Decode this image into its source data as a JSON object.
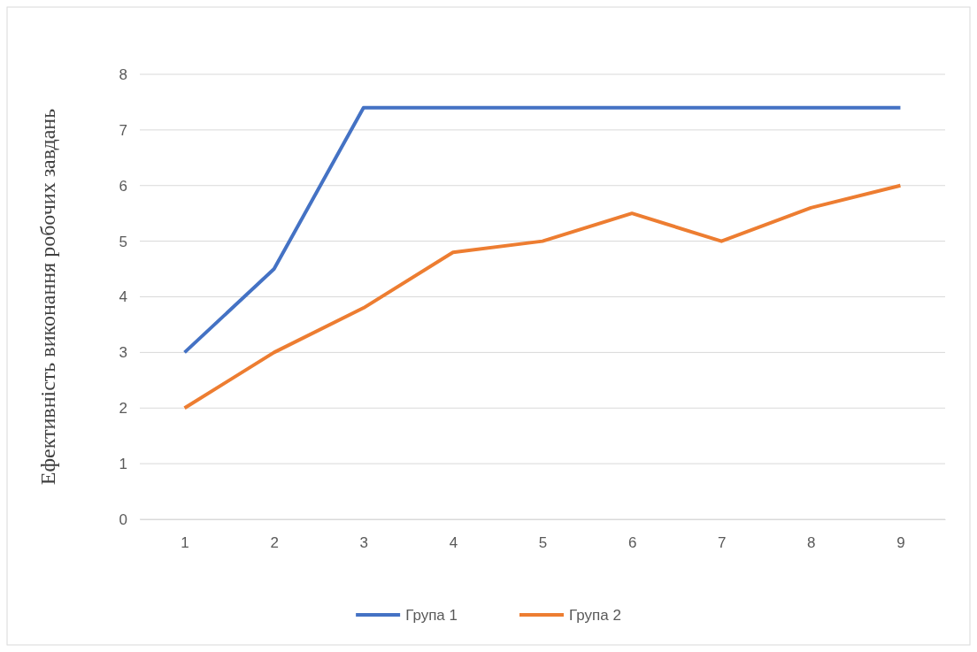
{
  "chart_data": {
    "type": "line",
    "ylabel": "Ефективність виконання робочих завдань",
    "categories": [
      "1",
      "2",
      "3",
      "4",
      "5",
      "6",
      "7",
      "8",
      "9"
    ],
    "series": [
      {
        "name": "Група 1",
        "color": "#4472c4",
        "values": [
          3,
          4.5,
          7.4,
          7.4,
          7.4,
          7.4,
          7.4,
          7.4,
          7.4
        ]
      },
      {
        "name": "Група 2",
        "color": "#ed7d31",
        "values": [
          2,
          3,
          3.8,
          4.8,
          5,
          5.5,
          5,
          5.6,
          6
        ]
      }
    ],
    "ylim": [
      0,
      8
    ],
    "yticks": [
      0,
      1,
      2,
      3,
      4,
      5,
      6,
      7,
      8
    ],
    "grid": "y",
    "legend": "bottom",
    "marker": "none",
    "line_style": "solid"
  }
}
